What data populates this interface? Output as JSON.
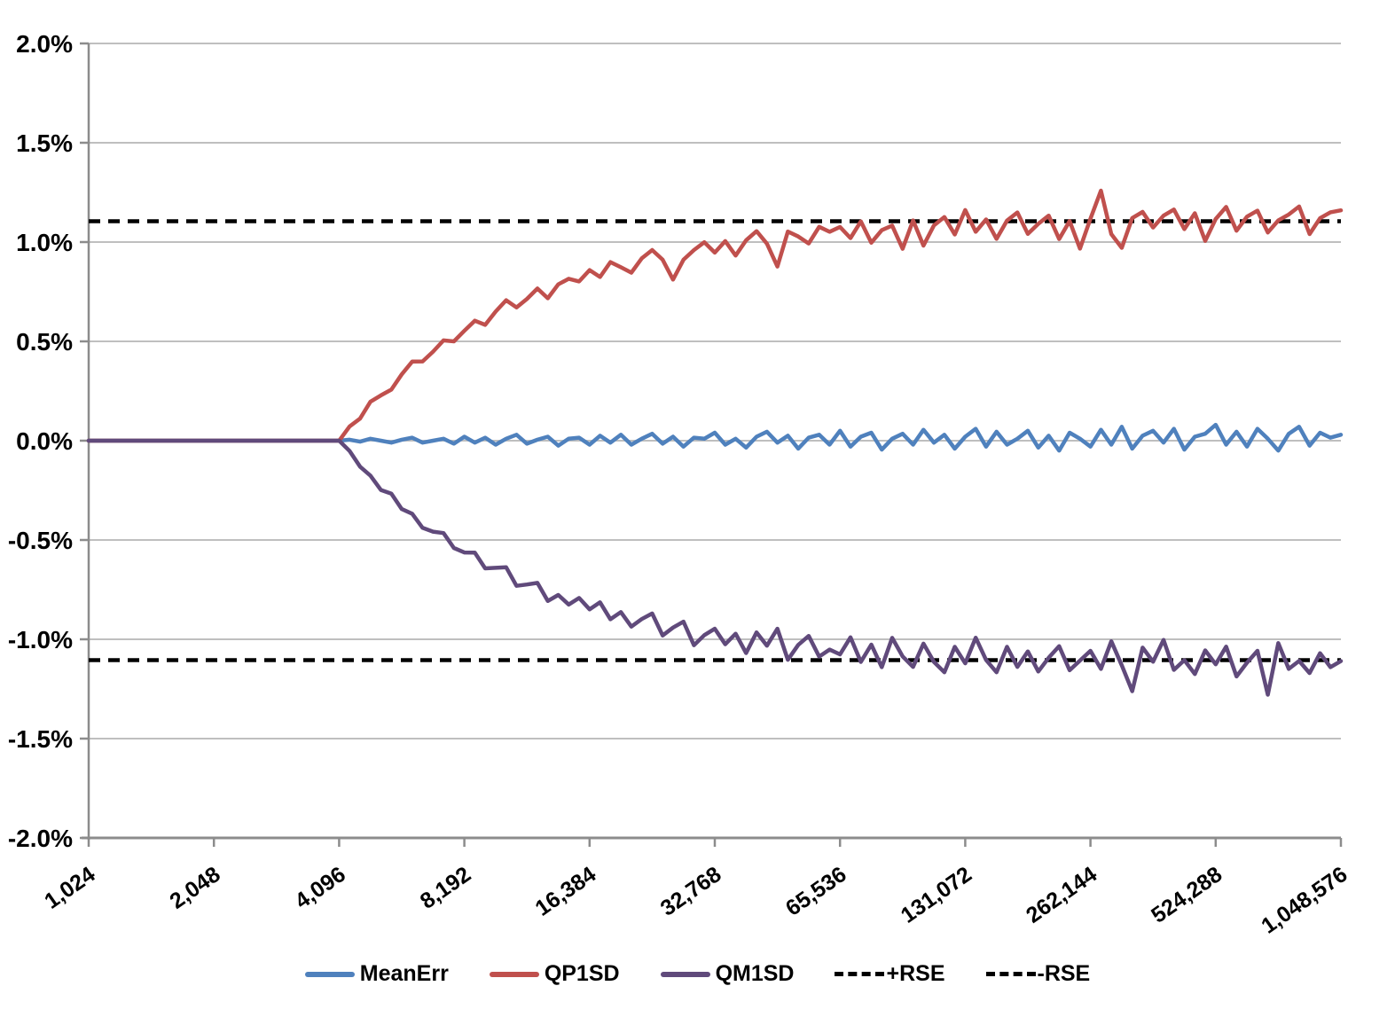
{
  "chart_data": {
    "type": "line",
    "title": "",
    "x_scale": "log2",
    "xlim": [
      1024,
      1048576
    ],
    "ylim_percent": [
      -2.0,
      2.0
    ],
    "grid": true,
    "legend_position": "bottom",
    "ytick_values": [
      2.0,
      1.5,
      1.0,
      0.5,
      0.0,
      -0.5,
      -1.0,
      -1.5,
      -2.0
    ],
    "ytick_labels": [
      "2.0%",
      "1.5%",
      "1.0%",
      "0.5%",
      "0.0%",
      "-0.5%",
      "-1.0%",
      "-1.5%",
      "-2.0%"
    ],
    "xtick_values": [
      1024,
      2048,
      4096,
      8192,
      16384,
      32768,
      65536,
      131072,
      262144,
      524288,
      1048576
    ],
    "xtick_labels": [
      "1,024",
      "2,048",
      "4,096",
      "8,192",
      "16,384",
      "32,768",
      "65,536",
      "131,072",
      "262,144",
      "524,288",
      "1,048,576"
    ],
    "rse_percent": 1.105,
    "x": [
      1024,
      2048,
      4096,
      4340,
      4598,
      4871,
      5161,
      5468,
      5793,
      6137,
      6502,
      6889,
      7298,
      7732,
      8192,
      8679,
      9195,
      9742,
      10321,
      10935,
      11585,
      12274,
      13004,
      13777,
      14596,
      15464,
      16384,
      17358,
      18390,
      19484,
      20643,
      21870,
      23170,
      24548,
      26008,
      27554,
      29193,
      30929,
      32768,
      34716,
      36781,
      38968,
      41285,
      43740,
      46341,
      49097,
      52016,
      55109,
      58386,
      61858,
      65536,
      69433,
      73562,
      77936,
      82570,
      87480,
      92682,
      98193,
      104032,
      110218,
      116772,
      123715,
      131072,
      138866,
      147123,
      155872,
      165140,
      174960,
      185364,
      196387,
      208064,
      220435,
      233544,
      247431,
      262144,
      277732,
      294247,
      311744,
      330281,
      349920,
      370728,
      392773,
      416128,
      440871,
      467088,
      494861,
      524288,
      555464,
      588493,
      623487,
      660561,
      699841,
      741455,
      785546,
      832255,
      881743,
      934175,
      989723,
      1048576
    ],
    "series": [
      {
        "name": "MeanErr",
        "color": "#4F81BD",
        "style": "solid",
        "values": [
          0,
          0,
          0,
          0.005,
          -0.005,
          0.01,
          0,
          -0.01,
          0.005,
          0.015,
          -0.01,
          0,
          0.01,
          -0.015,
          0.02,
          -0.01,
          0.015,
          -0.02,
          0.01,
          0.03,
          -0.015,
          0.005,
          0.02,
          -0.025,
          0.01,
          0.015,
          -0.02,
          0.025,
          -0.01,
          0.03,
          -0.02,
          0.01,
          0.035,
          -0.015,
          0.02,
          -0.03,
          0.015,
          0.01,
          0.04,
          -0.02,
          0.01,
          -0.035,
          0.02,
          0.045,
          -0.01,
          0.025,
          -0.04,
          0.015,
          0.03,
          -0.02,
          0.05,
          -0.03,
          0.02,
          0.04,
          -0.045,
          0.01,
          0.035,
          -0.02,
          0.055,
          -0.01,
          0.03,
          -0.04,
          0.02,
          0.06,
          -0.03,
          0.045,
          -0.02,
          0.01,
          0.05,
          -0.035,
          0.025,
          -0.05,
          0.04,
          0.01,
          -0.03,
          0.055,
          -0.02,
          0.07,
          -0.04,
          0.025,
          0.05,
          -0.01,
          0.06,
          -0.045,
          0.02,
          0.035,
          0.08,
          -0.02,
          0.045,
          -0.03,
          0.06,
          0.01,
          -0.05,
          0.035,
          0.07,
          -0.025,
          0.04,
          0.015,
          0.03
        ]
      },
      {
        "name": "QP1SD",
        "color": "#C0504D",
        "style": "solid",
        "values": [
          0,
          0,
          0,
          0.072,
          0.111,
          0.196,
          0.228,
          0.257,
          0.334,
          0.398,
          0.399,
          0.448,
          0.505,
          0.5,
          0.553,
          0.604,
          0.583,
          0.65,
          0.707,
          0.671,
          0.714,
          0.766,
          0.717,
          0.787,
          0.815,
          0.802,
          0.859,
          0.824,
          0.899,
          0.873,
          0.846,
          0.918,
          0.96,
          0.911,
          0.811,
          0.911,
          0.96,
          0.999,
          0.947,
          1.005,
          0.932,
          1.009,
          1.055,
          0.992,
          0.877,
          1.053,
          1.028,
          0.993,
          1.077,
          1.052,
          1.076,
          1.02,
          1.104,
          0.997,
          1.06,
          1.083,
          0.966,
          1.109,
          0.982,
          1.084,
          1.126,
          1.038,
          1.161,
          1.052,
          1.114,
          1.016,
          1.108,
          1.149,
          1.041,
          1.092,
          1.133,
          1.015,
          1.106,
          0.967,
          1.118,
          1.259,
          1.04,
          0.971,
          1.121,
          1.152,
          1.073,
          1.133,
          1.164,
          1.065,
          1.145,
          1.006,
          1.116,
          1.177,
          1.057,
          1.128,
          1.158,
          1.048,
          1.109,
          1.139,
          1.179,
          1.04,
          1.12,
          1.15,
          1.16
        ]
      },
      {
        "name": "QM1SD",
        "color": "#604A7B",
        "style": "solid",
        "values": [
          0,
          0,
          0,
          -0.052,
          -0.131,
          -0.176,
          -0.248,
          -0.267,
          -0.344,
          -0.368,
          -0.439,
          -0.458,
          -0.465,
          -0.54,
          -0.563,
          -0.564,
          -0.643,
          -0.64,
          -0.637,
          -0.731,
          -0.724,
          -0.716,
          -0.807,
          -0.777,
          -0.825,
          -0.792,
          -0.849,
          -0.814,
          -0.899,
          -0.863,
          -0.936,
          -0.898,
          -0.87,
          -0.981,
          -0.941,
          -0.911,
          -1.03,
          -0.979,
          -0.947,
          -1.025,
          -0.972,
          -1.069,
          -0.965,
          -1.032,
          -0.947,
          -1.103,
          -1.028,
          -0.983,
          -1.087,
          -1.052,
          -1.076,
          -0.99,
          -1.114,
          -1.027,
          -1.14,
          -0.993,
          -1.086,
          -1.139,
          -1.022,
          -1.114,
          -1.166,
          -1.038,
          -1.121,
          -0.992,
          -1.104,
          -1.166,
          -1.038,
          -1.139,
          -1.061,
          -1.162,
          -1.093,
          -1.035,
          -1.156,
          -1.107,
          -1.058,
          -1.149,
          -1.01,
          -1.131,
          -1.261,
          -1.042,
          -1.113,
          -1.003,
          -1.154,
          -1.105,
          -1.175,
          -1.056,
          -1.126,
          -1.037,
          -1.187,
          -1.118,
          -1.058,
          -1.279,
          -1.019,
          -1.149,
          -1.109,
          -1.17,
          -1.07,
          -1.14,
          -1.11
        ]
      },
      {
        "name": "+RSE",
        "color": "#000000",
        "style": "dashed",
        "constant": 1.105
      },
      {
        "name": "-RSE",
        "color": "#000000",
        "style": "dashed",
        "constant": -1.105
      }
    ]
  },
  "style_colors": {
    "gridline": "#BFBFBF",
    "axis": "#8C8C8C",
    "text": "#000000",
    "background": "#FFFFFF"
  }
}
